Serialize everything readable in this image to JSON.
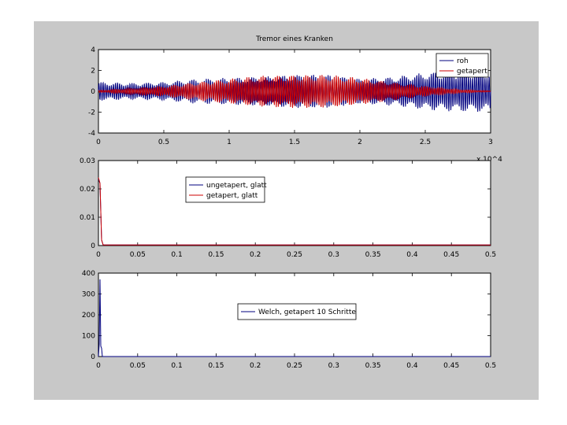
{
  "colors": {
    "figure_bg": "#c8c8c8",
    "axes_bg": "#ffffff",
    "blue": "#00007f",
    "red": "#cc0000"
  },
  "chart_data": [
    {
      "type": "line",
      "title": "Tremor eines Kranken",
      "xlim": [
        0,
        3
      ],
      "ylim": [
        -4,
        4
      ],
      "x_ticks": [
        0,
        0.5,
        1,
        1.5,
        2,
        2.5,
        3
      ],
      "x_tick_labels": [
        "0",
        "0.5",
        "1",
        "1.5",
        "2",
        "2.5",
        "3"
      ],
      "y_ticks": [
        4,
        2,
        0,
        -2,
        -4
      ],
      "y_tick_labels": [
        "4",
        "2",
        "0",
        "-2",
        "-4"
      ],
      "x_multiplier": "x 10^4",
      "grid": false,
      "legend_position": "top-right",
      "series": [
        {
          "name": "roh",
          "color": "#00007f",
          "envelope_x": [
            0,
            0.25,
            0.5,
            0.75,
            1,
            1.25,
            1.5,
            1.75,
            2,
            2.25,
            2.5,
            2.75,
            3
          ],
          "envelope_amp": [
            0.9,
            0.8,
            0.9,
            1.2,
            1.3,
            1.4,
            1.6,
            1.6,
            1.2,
            1.4,
            1.8,
            2.0,
            2.0
          ]
        },
        {
          "name": "getapert",
          "color": "#cc0000",
          "envelope_x": [
            0,
            0.25,
            0.5,
            0.75,
            1,
            1.25,
            1.5,
            1.75,
            2,
            2.25,
            2.5,
            2.75,
            3
          ],
          "envelope_amp": [
            0.1,
            0.3,
            0.5,
            0.9,
            1.2,
            1.5,
            1.6,
            1.6,
            1.3,
            0.9,
            0.5,
            0.2,
            0.05
          ]
        }
      ]
    },
    {
      "type": "line",
      "xlim": [
        0,
        0.5
      ],
      "ylim": [
        0,
        0.03
      ],
      "x_ticks": [
        0,
        0.05,
        0.1,
        0.15,
        0.2,
        0.25,
        0.3,
        0.35,
        0.4,
        0.45,
        0.5
      ],
      "x_tick_labels": [
        "0",
        "0.05",
        "0.1",
        "0.15",
        "0.2",
        "0.25",
        "0.3",
        "0.35",
        "0.4",
        "0.45",
        "0.5"
      ],
      "y_ticks": [
        0.03,
        0.02,
        0.01,
        0
      ],
      "y_tick_labels": [
        "0.03",
        "0.02",
        "0.01",
        "0"
      ],
      "grid": false,
      "legend_position": "top-center",
      "series": [
        {
          "name": "ungetapert, glatt",
          "color": "#00007f",
          "x": [
            0,
            0.002,
            0.004,
            0.006,
            0.5
          ],
          "y": [
            0.0235,
            0.022,
            0.002,
            0.0002,
            0.0002
          ]
        },
        {
          "name": "getapert, glatt",
          "color": "#cc0000",
          "x": [
            0,
            0.002,
            0.004,
            0.006,
            0.5
          ],
          "y": [
            0.024,
            0.022,
            0.002,
            0.0002,
            0.0002
          ]
        }
      ]
    },
    {
      "type": "line",
      "xlim": [
        0,
        0.5
      ],
      "ylim": [
        0,
        400
      ],
      "x_ticks": [
        0,
        0.05,
        0.1,
        0.15,
        0.2,
        0.25,
        0.3,
        0.35,
        0.4,
        0.45,
        0.5
      ],
      "x_tick_labels": [
        "0",
        "0.05",
        "0.1",
        "0.15",
        "0.2",
        "0.25",
        "0.3",
        "0.35",
        "0.4",
        "0.45",
        "0.5"
      ],
      "y_ticks": [
        400,
        300,
        200,
        100,
        0
      ],
      "y_tick_labels": [
        "400",
        "300",
        "200",
        "100",
        "0"
      ],
      "grid": false,
      "legend_position": "center",
      "series": [
        {
          "name": "Welch, getapert 10 Schritte",
          "color": "#00007f",
          "x": [
            0,
            0.001,
            0.002,
            0.003,
            0.004,
            0.005,
            0.006,
            0.008,
            0.5
          ],
          "y": [
            0,
            60,
            370,
            50,
            40,
            0,
            0,
            0,
            0
          ]
        }
      ]
    }
  ]
}
